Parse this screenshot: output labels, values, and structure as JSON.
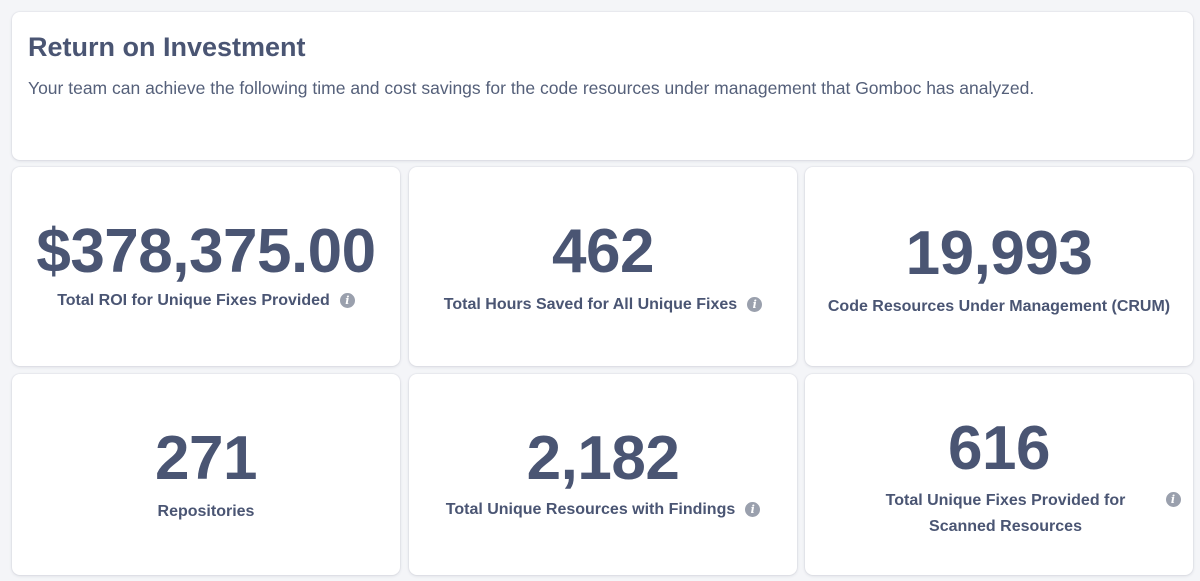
{
  "header": {
    "title": "Return on Investment",
    "description": "Your team can achieve the following time and cost savings for the code resources under management that Gomboc has analyzed."
  },
  "stats": [
    {
      "value": "$378,375.00",
      "label": "Total ROI for Unique Fixes Provided",
      "info_icon": true
    },
    {
      "value": "462",
      "label": "Total Hours Saved for All Unique Fixes",
      "info_icon": true
    },
    {
      "value": "19,993",
      "label": "Code Resources Under Management (CRUM)",
      "info_icon": false
    },
    {
      "value": "271",
      "label": "Repositories",
      "info_icon": false
    },
    {
      "value": "2,182",
      "label": "Total Unique Resources with Findings",
      "info_icon": true
    },
    {
      "value": "616",
      "label": "Total Unique Fixes Provided for Scanned Resources",
      "info_icon": true
    }
  ],
  "icons": {
    "info": "info-icon"
  },
  "colors": {
    "text": "#4a5573",
    "icon": "#9aa0ad",
    "card": "#ffffff",
    "background": "#f4f5f8"
  }
}
